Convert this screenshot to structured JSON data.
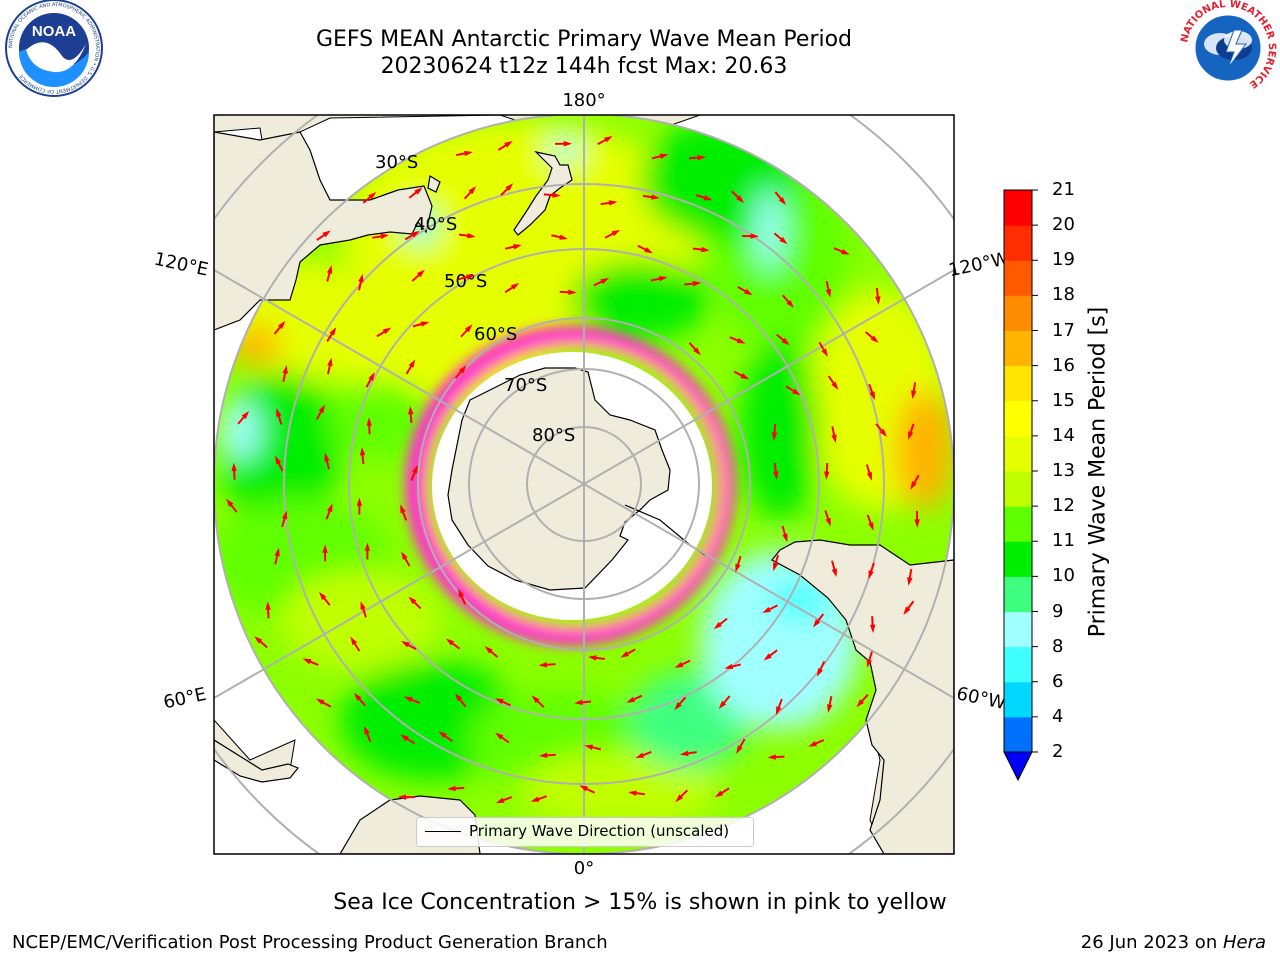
{
  "title": {
    "line1": "GEFS MEAN Antarctic Primary Wave Mean Period",
    "line2": "20230624 t12z 144h fcst   Max: 20.63"
  },
  "logos": {
    "noaa": {
      "label": "NOAA",
      "ring_text": "NATIONAL OCEANIC AND ATMOSPHERIC ADMINISTRATION • U.S. DEPARTMENT OF COMMERCE"
    },
    "nws": {
      "ring_text": "NATIONAL WEATHER SERVICE"
    }
  },
  "map": {
    "projection": "south-polar-stereographic",
    "longitude_labels": {
      "top": "180°",
      "bottom": "0°",
      "upper_left": "120°E",
      "upper_right": "120°W",
      "lower_left": "60°E",
      "lower_right": "60°W"
    },
    "latitude_labels": [
      "30°S",
      "40°S",
      "50°S",
      "60°S",
      "70°S",
      "80°S"
    ],
    "arrow_color": "#ff0000",
    "land_color": "#efecdc",
    "ice_colors": [
      "#ff33cc",
      "#ff9966",
      "#ffcc33"
    ]
  },
  "legend": {
    "label": "Primary Wave Direction (unscaled)"
  },
  "colorbar": {
    "label": "Primary Wave Mean Period [s]",
    "ticks": [
      "2",
      "4",
      "6",
      "8",
      "9",
      "10",
      "11",
      "12",
      "13",
      "14",
      "15",
      "16",
      "17",
      "18",
      "19",
      "20",
      "21"
    ],
    "colors": [
      "#0070ff",
      "#00d8ff",
      "#40ffff",
      "#a0ffff",
      "#40ff80",
      "#00ee00",
      "#60ff00",
      "#c0ff00",
      "#e6ff00",
      "#ffff00",
      "#ffe600",
      "#ffb400",
      "#ff8c00",
      "#ff5a00",
      "#ff2d00",
      "#ff0000"
    ],
    "extend_color": "#0000ff"
  },
  "caption": "Sea Ice Concentration > 15% is shown in pink to yellow",
  "footer": {
    "left": "NCEP/EMC/Verification Post Processing Product Generation Branch",
    "right_prefix": "26 Jun 2023 on ",
    "right_machine": "Hera"
  }
}
